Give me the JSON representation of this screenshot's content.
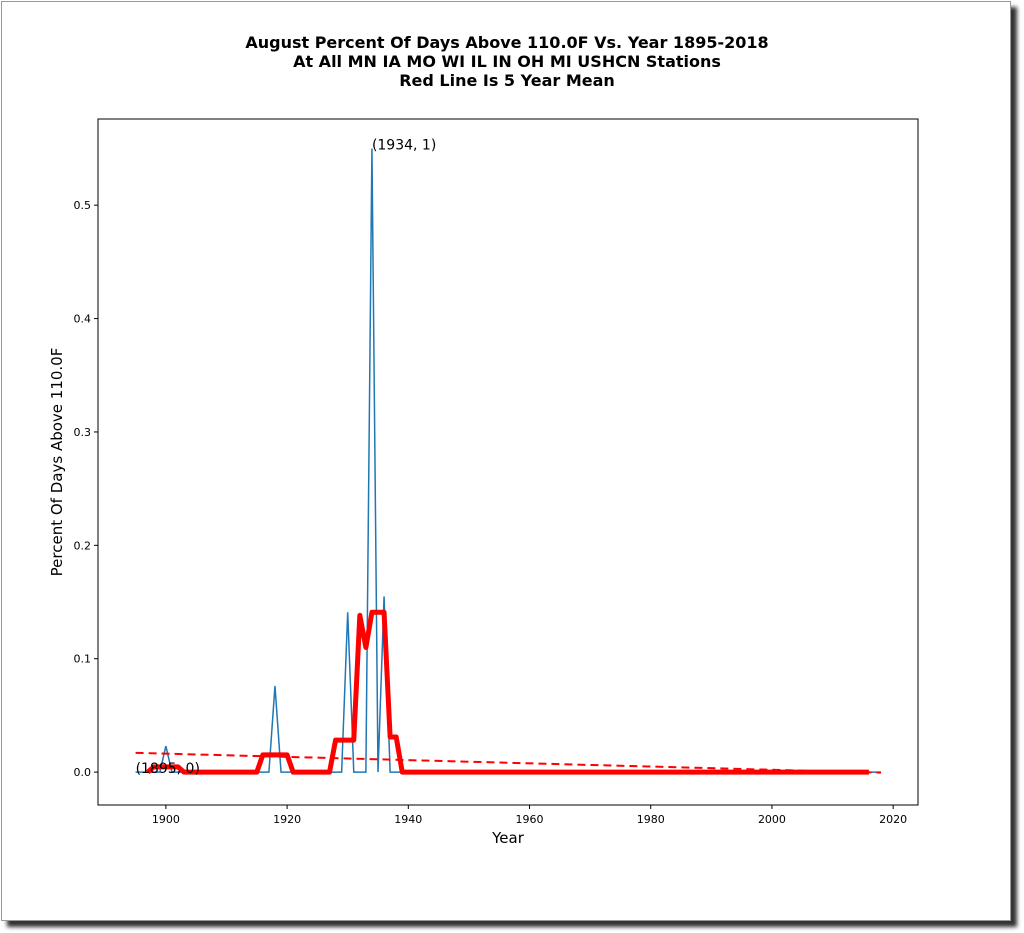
{
  "chart_data": {
    "type": "line",
    "title": [
      "August Percent Of Days Above 110.0F Vs. Year 1895-2018",
      "At All MN IA MO WI IL IN OH MI USHCN Stations",
      "Red Line Is 5 Year Mean"
    ],
    "xlabel": "Year",
    "ylabel": "Percent Of Days Above 110.0F",
    "xlim": [
      1888.8,
      2024.1
    ],
    "ylim": [
      -0.029,
      0.576
    ],
    "xticks": [
      1900,
      1920,
      1940,
      1960,
      1980,
      2000,
      2020
    ],
    "xtick_labels": [
      "1900",
      "1920",
      "1940",
      "1960",
      "1980",
      "2000",
      "2020"
    ],
    "yticks": [
      0,
      0.1,
      0.2,
      0.3,
      0.4,
      0.5
    ],
    "ytick_labels": [
      "0.0",
      "0.1",
      "0.2",
      "0.3",
      "0.4",
      "0.5"
    ],
    "series": [
      {
        "name": "Percent of days",
        "color": "#1f77b4",
        "x_start": 1895,
        "x_end": 2018,
        "nonzero": {
          "1900": 0.023,
          "1918": 0.076,
          "1930": 0.141,
          "1934": 0.55,
          "1936": 0.155
        }
      },
      {
        "name": "5 Year Mean",
        "color": "#ff0000",
        "x_start": 1897,
        "x_end": 2016,
        "window": 5
      },
      {
        "name": "Trend",
        "color": "#ff0000",
        "style": "dashed",
        "x": [
          1895,
          2018
        ],
        "y": [
          0.017,
          -0.0005
        ]
      }
    ],
    "annotations": [
      {
        "text": "(1934, 1)",
        "x": 1934,
        "y": 0.55
      },
      {
        "text": "(1895, 0)",
        "x": 1895,
        "y": 0
      }
    ]
  }
}
